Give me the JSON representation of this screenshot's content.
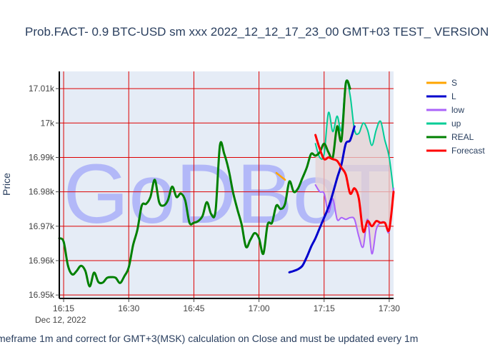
{
  "chart_data": {
    "type": "line",
    "title": "Prob.FACT- 0.9 BTC-USD sm xxx 2022_12_12_17_23_00 GMT+03 TEST_ VERSION",
    "ylabel": "Price",
    "x_date_label": "Dec 12, 2022",
    "xlim": [
      "16:14",
      "17:31"
    ],
    "ylim": [
      16949,
      17015
    ],
    "x_ticks": [
      {
        "t": "16:15",
        "label": "16:15"
      },
      {
        "t": "16:30",
        "label": "16:30"
      },
      {
        "t": "16:45",
        "label": "16:45"
      },
      {
        "t": "17:00",
        "label": "17:00"
      },
      {
        "t": "17:15",
        "label": "17:15"
      },
      {
        "t": "17:30",
        "label": "17:30"
      }
    ],
    "y_ticks": [
      {
        "v": 16950,
        "label": "16.95k"
      },
      {
        "v": 16960,
        "label": "16.96k"
      },
      {
        "v": 16970,
        "label": "16.97k"
      },
      {
        "v": 16980,
        "label": "16.98k"
      },
      {
        "v": 16990,
        "label": "16.99k"
      },
      {
        "v": 17000,
        "label": "17k"
      },
      {
        "v": 17010,
        "label": "17.01k"
      }
    ],
    "grid": true,
    "legend_position": "right",
    "watermark": "GoDBoT",
    "footnote": "meframe 1m and correct for GMT+3(MSK) calculation on Close and must be updated every 1m",
    "series": [
      {
        "name": "S",
        "color": "#FFA500",
        "width": 2.5,
        "points": [
          [
            "17:04",
            16985.5
          ],
          [
            "17:05",
            16984.5
          ],
          [
            "17:06",
            16983.5
          ]
        ]
      },
      {
        "name": "L",
        "color": "#0000CD",
        "width": 3,
        "points": [
          [
            "17:07",
            16956.6
          ],
          [
            "17:08",
            16957
          ],
          [
            "17:09",
            16957.5
          ],
          [
            "17:10",
            16958.5
          ],
          [
            "17:11",
            16961
          ],
          [
            "17:12",
            16964
          ],
          [
            "17:13",
            16966.5
          ],
          [
            "17:14",
            16969.5
          ],
          [
            "17:15",
            16972.5
          ],
          [
            "17:16",
            16975.5
          ],
          [
            "17:17",
            16979.5
          ],
          [
            "17:18",
            16984
          ],
          [
            "17:19",
            16988
          ],
          [
            "17:20",
            16994
          ],
          [
            "17:21",
            16995
          ],
          [
            "17:22",
            16999
          ]
        ]
      },
      {
        "name": "low",
        "color": "#AB63FA",
        "width": 2,
        "points": [
          [
            "17:13",
            16982
          ],
          [
            "17:14",
            16980
          ],
          [
            "17:15",
            16979.5
          ],
          [
            "17:16",
            16974
          ],
          [
            "17:17",
            16978
          ],
          [
            "17:18",
            16972
          ],
          [
            "17:19",
            16972.5
          ],
          [
            "17:20",
            16972
          ],
          [
            "17:21",
            16972.5
          ],
          [
            "17:22",
            16972
          ],
          [
            "17:23",
            16967
          ],
          [
            "17:24",
            16964
          ],
          [
            "17:25",
            16972
          ],
          [
            "17:26",
            16962
          ],
          [
            "17:27",
            16969
          ],
          [
            "17:28",
            16971
          ],
          [
            "17:29",
            16971
          ],
          [
            "17:30",
            16968.5
          ],
          [
            "17:31",
            16981
          ]
        ]
      },
      {
        "name": "up",
        "color": "#00CC96",
        "width": 2,
        "points": [
          [
            "17:13",
            16994
          ],
          [
            "17:14",
            16990
          ],
          [
            "17:15",
            16991
          ],
          [
            "17:16",
            17003
          ],
          [
            "17:17",
            16997.5
          ],
          [
            "17:18",
            17002
          ],
          [
            "17:19",
            16998
          ],
          [
            "17:20",
            17012
          ],
          [
            "17:21",
            17008
          ],
          [
            "17:22",
            16998
          ],
          [
            "17:23",
            16997
          ],
          [
            "17:24",
            17000
          ],
          [
            "17:25",
            16998
          ],
          [
            "17:26",
            16993.5
          ],
          [
            "17:27",
            16998
          ],
          [
            "17:28",
            17000.5
          ],
          [
            "17:29",
            16995
          ],
          [
            "17:30",
            16990
          ],
          [
            "17:31",
            16980
          ]
        ]
      },
      {
        "name": "REAL",
        "color": "#008000",
        "width": 3,
        "points": [
          [
            "16:14",
            16966.5
          ],
          [
            "16:15",
            16965.5
          ],
          [
            "16:16",
            16958.5
          ],
          [
            "16:17",
            16956
          ],
          [
            "16:18",
            16957
          ],
          [
            "16:19",
            16958.5
          ],
          [
            "16:20",
            16957
          ],
          [
            "16:21",
            16952.5
          ],
          [
            "16:22",
            16956.5
          ],
          [
            "16:23",
            16953.8
          ],
          [
            "16:24",
            16953.6
          ],
          [
            "16:25",
            16955
          ],
          [
            "16:26",
            16955.2
          ],
          [
            "16:27",
            16955
          ],
          [
            "16:28",
            16953.5
          ],
          [
            "16:29",
            16955.5
          ],
          [
            "16:30",
            16958
          ],
          [
            "16:31",
            16964.5
          ],
          [
            "16:32",
            16969
          ],
          [
            "16:33",
            16976
          ],
          [
            "16:34",
            16976.5
          ],
          [
            "16:35",
            16978.5
          ],
          [
            "16:36",
            16983.5
          ],
          [
            "16:37",
            16977
          ],
          [
            "16:38",
            16976
          ],
          [
            "16:39",
            16977.5
          ],
          [
            "16:40",
            16981.5
          ],
          [
            "16:41",
            16978.5
          ],
          [
            "16:42",
            16979.5
          ],
          [
            "16:43",
            16977.5
          ],
          [
            "16:44",
            16971
          ],
          [
            "16:45",
            16971
          ],
          [
            "16:46",
            16971.5
          ],
          [
            "16:47",
            16973
          ],
          [
            "16:48",
            16977
          ],
          [
            "16:49",
            16973.5
          ],
          [
            "16:50",
            16974.5
          ],
          [
            "16:51",
            16993.5
          ],
          [
            "16:52",
            16991
          ],
          [
            "16:53",
            16986.5
          ],
          [
            "16:54",
            16980
          ],
          [
            "16:55",
            16975
          ],
          [
            "16:56",
            16970.5
          ],
          [
            "16:57",
            16964
          ],
          [
            "16:58",
            16966
          ],
          [
            "16:59",
            16968
          ],
          [
            "17:00",
            16966.5
          ],
          [
            "17:01",
            16962
          ],
          [
            "17:02",
            16970.5
          ],
          [
            "17:03",
            16971
          ],
          [
            "17:04",
            16976
          ],
          [
            "17:05",
            16975
          ],
          [
            "17:06",
            16976.5
          ],
          [
            "17:07",
            16983
          ],
          [
            "17:08",
            16980
          ],
          [
            "17:09",
            16981
          ],
          [
            "17:10",
            16984
          ],
          [
            "17:11",
            16987
          ],
          [
            "17:12",
            16991
          ],
          [
            "17:13",
            16990.5
          ],
          [
            "17:14",
            16991.5
          ],
          [
            "17:15",
            16994
          ],
          [
            "17:16",
            16991.5
          ],
          [
            "17:17",
            16990
          ],
          [
            "17:18",
            16999
          ],
          [
            "17:19",
            16995
          ],
          [
            "17:20",
            17011.5
          ],
          [
            "17:21",
            17010
          ]
        ]
      },
      {
        "name": "Forecast",
        "color": "#FF0000",
        "width": 3,
        "points": [
          [
            "17:13",
            16996.5
          ],
          [
            "17:14",
            16992.5
          ],
          [
            "17:15",
            16989.5
          ],
          [
            "17:16",
            16990
          ],
          [
            "17:17",
            16989.5
          ],
          [
            "17:18",
            16989
          ],
          [
            "17:19",
            16987
          ],
          [
            "17:20",
            16985
          ],
          [
            "17:21",
            16979.5
          ],
          [
            "17:22",
            16981
          ],
          [
            "17:23",
            16978
          ],
          [
            "17:24",
            16968.5
          ],
          [
            "17:25",
            16971.5
          ],
          [
            "17:26",
            16970
          ],
          [
            "17:27",
            16971.5
          ],
          [
            "17:28",
            16971
          ],
          [
            "17:29",
            16971
          ],
          [
            "17:30",
            16969
          ],
          [
            "17:31",
            16980
          ]
        ]
      }
    ]
  }
}
